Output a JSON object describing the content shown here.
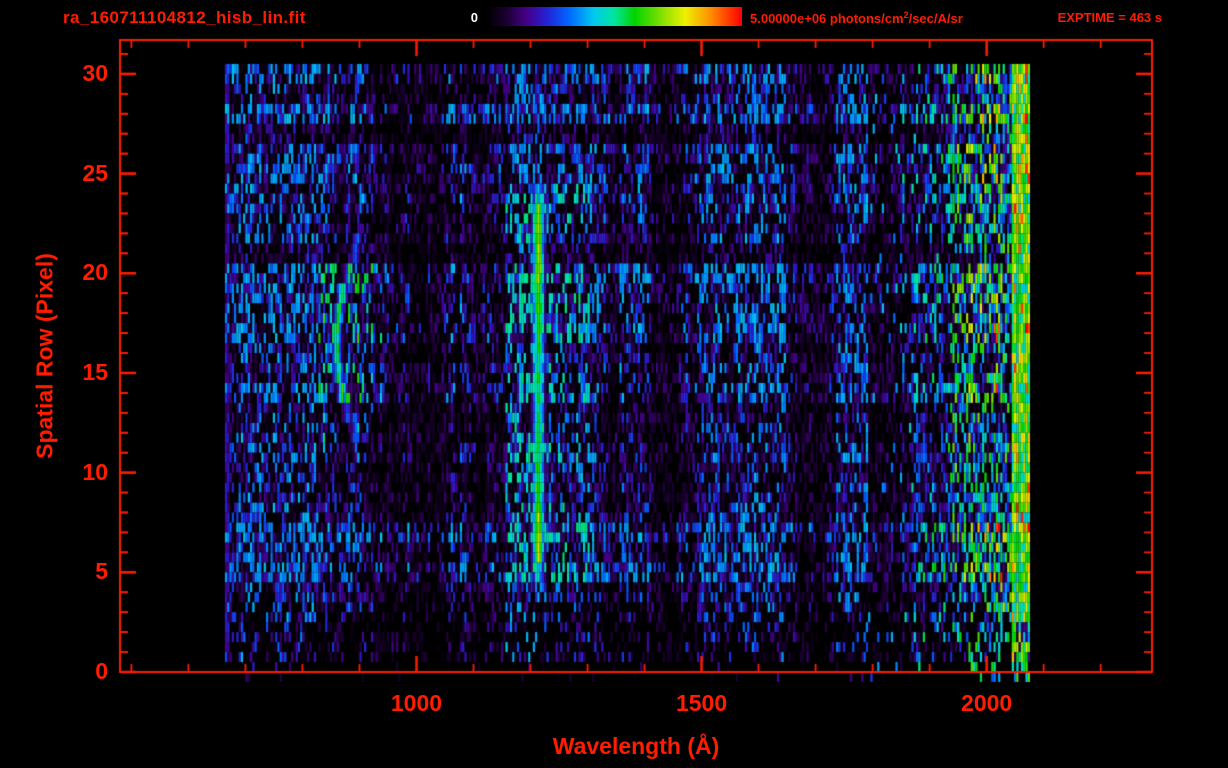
{
  "header": {
    "title": "ra_160711104812_hisb_lin.fit",
    "exptime": "EXPTIME = 463 s",
    "colorbar": {
      "min_label": "0",
      "max_label_prefix": "5.00000e+06 photons/cm",
      "max_label_sup": "2",
      "max_label_suffix": "/sec/A/sr"
    }
  },
  "colors": {
    "axis": "#ff1c00",
    "colorbar_min_label": "#ffffff",
    "background": "#000000"
  },
  "chart_data": {
    "type": "heatmap",
    "title": "ra_160711104812_hisb_lin.fit",
    "xlabel": "Wavelength (Å)",
    "ylabel": "Spatial Row (Pixel)",
    "x_ticks": [
      1000,
      1500,
      2000
    ],
    "x_minor_step": 100,
    "y_ticks": [
      0,
      5,
      10,
      15,
      20,
      25,
      30
    ],
    "y_minor_step": 1,
    "xlim": [
      480,
      2290
    ],
    "ylim": [
      0,
      31.7
    ],
    "data_xrange": [
      664,
      2074
    ],
    "data_yrange": [
      0,
      30.5
    ],
    "colorbar_scale": {
      "min": 0,
      "max": 5000000,
      "units": "photons/cm²/sec/A/sr"
    },
    "exptime_seconds": 463,
    "colormap_stops": [
      [
        0.0,
        "#000000"
      ],
      [
        0.08,
        "#1c0033"
      ],
      [
        0.16,
        "#46008c"
      ],
      [
        0.24,
        "#2424d8"
      ],
      [
        0.32,
        "#0064ff"
      ],
      [
        0.42,
        "#00c8f0"
      ],
      [
        0.5,
        "#00e6a0"
      ],
      [
        0.58,
        "#00d400"
      ],
      [
        0.68,
        "#7ce000"
      ],
      [
        0.78,
        "#f0f000"
      ],
      [
        0.88,
        "#ff8c00"
      ],
      [
        1.0,
        "#ff0000"
      ]
    ],
    "features": [
      {
        "name": "emission-line-lyman-alpha",
        "label": "bright vertical emission line",
        "wavelength": 1214,
        "width": 24,
        "rows": [
          5,
          24
        ],
        "intensity": 0.6
      },
      {
        "name": "crescent-arc",
        "label": "curved arc emission feature",
        "wavelength_center": 860,
        "row_center": 16.5,
        "row_halfspan": 4,
        "curvature": 1.6,
        "width": 10,
        "intensity": 0.55
      },
      {
        "name": "airglow-edge",
        "label": "bright band at red edge of detector",
        "wavelength_range": [
          2042,
          2074
        ],
        "intensity": 0.62
      },
      {
        "name": "faint-left-line",
        "label": "faint line at blue edge of detector",
        "wavelength": 668,
        "width": 5,
        "intensity": 0.17
      }
    ],
    "noise": {
      "base": 0.15,
      "gap_probability": 0.32,
      "seed": 20160711
    }
  }
}
